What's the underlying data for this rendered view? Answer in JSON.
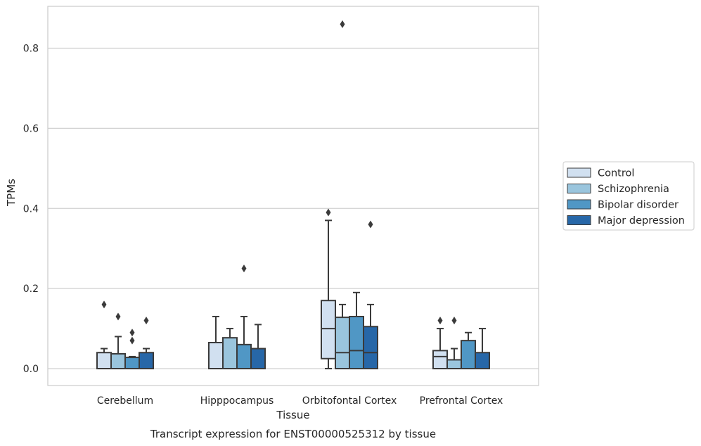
{
  "chart_data": {
    "type": "box",
    "title": "Transcript expression for ENST00000525312 by tissue",
    "xlabel": "Tissue",
    "ylabel": "TPMs",
    "ylim": [
      -0.042,
      0.905
    ],
    "yticks": [
      0.0,
      0.2,
      0.4,
      0.6,
      0.8
    ],
    "ytick_labels": [
      "0.0",
      "0.2",
      "0.4",
      "0.6",
      "0.8"
    ],
    "grid": "horizontal",
    "legend_position": "right",
    "categories": [
      "Cerebellum",
      "Hipppocampus",
      "Orbitofontal Cortex",
      "Prefrontal Cortex"
    ],
    "series": [
      {
        "name": "Control",
        "color": "#d1e0f0",
        "boxes": [
          {
            "whisker_low": 0.0,
            "q1": 0.0,
            "median": 0.0,
            "q3": 0.04,
            "whisker_high": 0.05,
            "outliers": [
              0.16
            ]
          },
          {
            "whisker_low": 0.0,
            "q1": 0.0,
            "median": 0.0,
            "q3": 0.065,
            "whisker_high": 0.13,
            "outliers": []
          },
          {
            "whisker_low": 0.0,
            "q1": 0.025,
            "median": 0.1,
            "q3": 0.17,
            "whisker_high": 0.37,
            "outliers": [
              0.39
            ]
          },
          {
            "whisker_low": 0.0,
            "q1": 0.0,
            "median": 0.03,
            "q3": 0.045,
            "whisker_high": 0.1,
            "outliers": [
              0.12
            ]
          }
        ]
      },
      {
        "name": "Schizophrenia",
        "color": "#9ac5dd",
        "boxes": [
          {
            "whisker_low": 0.0,
            "q1": 0.0,
            "median": 0.0,
            "q3": 0.037,
            "whisker_high": 0.08,
            "outliers": [
              0.13
            ]
          },
          {
            "whisker_low": 0.0,
            "q1": 0.0,
            "median": 0.0,
            "q3": 0.077,
            "whisker_high": 0.1,
            "outliers": []
          },
          {
            "whisker_low": 0.0,
            "q1": 0.0,
            "median": 0.04,
            "q3": 0.128,
            "whisker_high": 0.16,
            "outliers": [
              0.86
            ]
          },
          {
            "whisker_low": 0.0,
            "q1": 0.0,
            "median": 0.0,
            "q3": 0.022,
            "whisker_high": 0.05,
            "outliers": [
              0.12
            ]
          }
        ]
      },
      {
        "name": "Bipolar disorder",
        "color": "#5097c5",
        "boxes": [
          {
            "whisker_low": 0.0,
            "q1": 0.0,
            "median": 0.0,
            "q3": 0.028,
            "whisker_high": 0.03,
            "outliers": [
              0.07,
              0.09
            ]
          },
          {
            "whisker_low": 0.0,
            "q1": 0.0,
            "median": 0.0,
            "q3": 0.06,
            "whisker_high": 0.13,
            "outliers": [
              0.25
            ]
          },
          {
            "whisker_low": 0.0,
            "q1": 0.0,
            "median": 0.045,
            "q3": 0.13,
            "whisker_high": 0.19,
            "outliers": []
          },
          {
            "whisker_low": 0.0,
            "q1": 0.0,
            "median": 0.0,
            "q3": 0.07,
            "whisker_high": 0.09,
            "outliers": []
          }
        ]
      },
      {
        "name": "Major depression",
        "color": "#2767a8",
        "boxes": [
          {
            "whisker_low": 0.0,
            "q1": 0.0,
            "median": 0.0,
            "q3": 0.04,
            "whisker_high": 0.05,
            "outliers": [
              0.12
            ]
          },
          {
            "whisker_low": 0.0,
            "q1": 0.0,
            "median": 0.0,
            "q3": 0.05,
            "whisker_high": 0.11,
            "outliers": []
          },
          {
            "whisker_low": 0.0,
            "q1": 0.0,
            "median": 0.04,
            "q3": 0.105,
            "whisker_high": 0.16,
            "outliers": [
              0.36
            ]
          },
          {
            "whisker_low": 0.0,
            "q1": 0.0,
            "median": 0.0,
            "q3": 0.04,
            "whisker_high": 0.1,
            "outliers": []
          }
        ]
      }
    ]
  }
}
